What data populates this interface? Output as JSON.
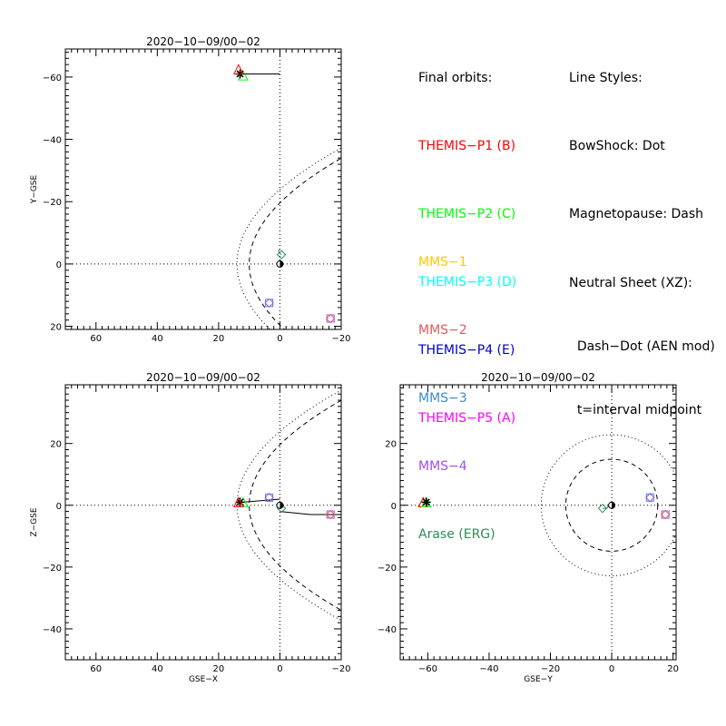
{
  "colors": {
    "themis_p1": "#ff0000",
    "themis_p2": "#00ff00",
    "themis_p3": "#00ffff",
    "themis_p4": "#0000cc",
    "themis_p5": "#ff00ff",
    "mms1": "#ffc800",
    "mms2": "#e05a5a",
    "mms3": "#3c8cc8",
    "mms4": "#a050e6",
    "arase": "#2e8b57",
    "axis": "#000000"
  },
  "legend": {
    "orbits_title": "Final orbits:",
    "themis": [
      {
        "label": "THEMIS−P1 (B)",
        "color": "#ff0000"
      },
      {
        "label": "THEMIS−P2 (C)",
        "color": "#00ff00"
      },
      {
        "label": "THEMIS−P3 (D)",
        "color": "#00ffff"
      },
      {
        "label": "THEMIS−P4 (E)",
        "color": "#0000cc"
      },
      {
        "label": "THEMIS−P5 (A)",
        "color": "#ff00ff"
      }
    ],
    "styles_title": "Line Styles:",
    "styles": [
      "BowShock: Dot",
      "Magnetopause: Dash",
      "Neutral Sheet (XZ):",
      "  Dash−Dot (AEN mod)",
      "  t=interval midpoint"
    ],
    "mms": [
      {
        "label": "MMS−1",
        "color": "#ffc800"
      },
      {
        "label": "MMS−2",
        "color": "#e05a5a"
      },
      {
        "label": "MMS−3",
        "color": "#3c8cc8"
      },
      {
        "label": "MMS−4",
        "color": "#a050e6"
      },
      {
        "label": "Arase (ERG)",
        "color": "#2e8b57"
      }
    ]
  },
  "chart_data": [
    {
      "type": "scatter",
      "title": "2020−10−09/00−02",
      "xlabel": "",
      "ylabel": "Y−GSE",
      "xlim": [
        70,
        -20
      ],
      "ylim": [
        21,
        -69
      ],
      "xticks": [
        60,
        40,
        20,
        0,
        -20
      ],
      "yticks": [
        -60,
        -40,
        -20,
        0,
        20
      ],
      "xtick_labels": [
        "60",
        "40",
        "20",
        "0",
        "−20"
      ],
      "ytick_labels": [
        "−60",
        "−40",
        "−20",
        "0",
        "20"
      ],
      "zero_lines": true,
      "bowshock": {
        "x0": 14,
        "k": 0.0245
      },
      "magnetopause": {
        "x0": 10,
        "k": 0.026
      },
      "orbits": [
        {
          "points": [
            [
              0,
              -61
            ],
            [
              12,
              -61
            ],
            [
              13,
              -61
            ]
          ],
          "color": "#000000"
        }
      ],
      "markers": [
        {
          "x": 12,
          "y": -60.5,
          "shape": "triangle",
          "color": "#00ff00"
        },
        {
          "x": 13,
          "y": -61,
          "shape": "star",
          "color": "#000000"
        },
        {
          "x": 13.5,
          "y": -62.5,
          "shape": "triangle",
          "color": "#ff0000"
        },
        {
          "x": 3.5,
          "y": 12.5,
          "shape": "square",
          "color": "#3c8cc8"
        },
        {
          "x": 3.5,
          "y": 12.5,
          "shape": "diamond",
          "color": "#a050e6"
        },
        {
          "x": -16.5,
          "y": 17.5,
          "shape": "square",
          "color": "#a050e6"
        },
        {
          "x": -16.5,
          "y": 17.5,
          "shape": "diamond",
          "color": "#e05a5a"
        },
        {
          "x": -0.5,
          "y": -3,
          "shape": "diamond",
          "color": "#2e8b57"
        },
        {
          "x": 0,
          "y": 0,
          "shape": "earth",
          "color": "#000000"
        }
      ],
      "arase_track": [
        [
          0,
          -5
        ],
        [
          0.5,
          -4
        ],
        [
          -0.5,
          -3
        ]
      ]
    },
    {
      "type": "scatter",
      "title": "2020−10−09/00−02",
      "xlabel": "GSE−X",
      "ylabel": "Z−GSE",
      "xlim": [
        70,
        -20
      ],
      "ylim": [
        -50,
        39
      ],
      "xticks": [
        60,
        40,
        20,
        0,
        -20
      ],
      "yticks": [
        -40,
        -20,
        0,
        20
      ],
      "xtick_labels": [
        "60",
        "40",
        "20",
        "0",
        "−20"
      ],
      "ytick_labels": [
        "−40",
        "−20",
        "0",
        "20"
      ],
      "zero_lines": true,
      "bowshock": {
        "x0": 14,
        "k": 0.0245
      },
      "magnetopause": {
        "x0": 10,
        "k": 0.026
      },
      "orbits": [
        {
          "points": [
            [
              0,
              2
            ],
            [
              12,
              1
            ],
            [
              13,
              1
            ]
          ],
          "color": "#000000"
        },
        {
          "points": [
            [
              0,
              -2
            ],
            [
              -10,
              -3
            ],
            [
              -20,
              -3
            ]
          ],
          "color": "#000000"
        }
      ],
      "markers": [
        {
          "x": 12,
          "y": 1,
          "shape": "triangle",
          "color": "#00ff00"
        },
        {
          "x": 13,
          "y": 1,
          "shape": "star",
          "color": "#000000"
        },
        {
          "x": 13.5,
          "y": 1,
          "shape": "triangle",
          "color": "#ff0000"
        },
        {
          "x": 3.5,
          "y": 2.5,
          "shape": "square",
          "color": "#3c8cc8"
        },
        {
          "x": 3.5,
          "y": 2.5,
          "shape": "diamond",
          "color": "#a050e6"
        },
        {
          "x": -16.5,
          "y": -3,
          "shape": "square",
          "color": "#a050e6"
        },
        {
          "x": -16.5,
          "y": -3,
          "shape": "diamond",
          "color": "#e05a5a"
        },
        {
          "x": -0.5,
          "y": -1,
          "shape": "diamond",
          "color": "#2e8b57"
        },
        {
          "x": 0,
          "y": 0,
          "shape": "earth",
          "color": "#000000"
        }
      ],
      "arase_track": []
    },
    {
      "type": "scatter",
      "title": "2020−10−09/00−02",
      "xlabel": "GSE−Y",
      "ylabel": "",
      "xlim": [
        -69,
        21
      ],
      "ylim": [
        -50,
        39
      ],
      "xticks": [
        -60,
        -40,
        -20,
        0,
        20
      ],
      "yticks": [
        -40,
        -20,
        0,
        20
      ],
      "xtick_labels": [
        "−60",
        "−40",
        "−20",
        "0",
        "20"
      ],
      "ytick_labels": [
        "−40",
        "−20",
        "0",
        "20"
      ],
      "zero_lines": true,
      "bowshock_circle": 23,
      "magnetopause_circle": 15,
      "orbits": [],
      "markers": [
        {
          "x": -61.5,
          "y": 1,
          "shape": "triangle",
          "color": "#ff0000"
        },
        {
          "x": -60.5,
          "y": 1,
          "shape": "triangle",
          "color": "#00ff00"
        },
        {
          "x": -60.5,
          "y": 1,
          "shape": "star",
          "color": "#000000"
        },
        {
          "x": 12.5,
          "y": 2.5,
          "shape": "square",
          "color": "#3c8cc8"
        },
        {
          "x": 12.5,
          "y": 2.5,
          "shape": "diamond",
          "color": "#a050e6"
        },
        {
          "x": 17.5,
          "y": -3,
          "shape": "square",
          "color": "#a050e6"
        },
        {
          "x": 17.5,
          "y": -3,
          "shape": "diamond",
          "color": "#e05a5a"
        },
        {
          "x": -3,
          "y": -1,
          "shape": "diamond",
          "color": "#2e8b57"
        },
        {
          "x": 0,
          "y": 0,
          "shape": "earth",
          "color": "#000000"
        }
      ],
      "arase_track": [
        [
          -3,
          -1
        ],
        [
          -1.5,
          -1
        ],
        [
          -1,
          0
        ]
      ]
    }
  ]
}
